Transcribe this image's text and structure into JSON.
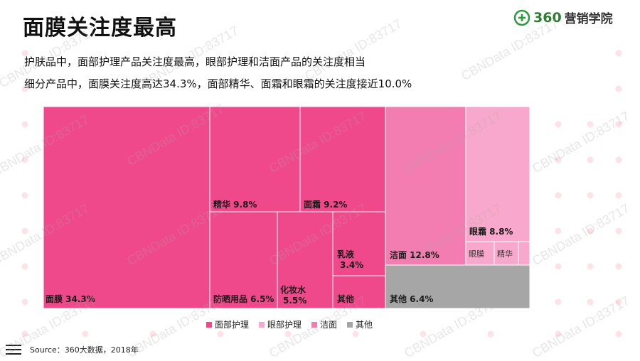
{
  "header": {
    "title": "面膜关注度最高",
    "subtitle_line1": "护肤品中，面部护理产品关注度最高，眼部护理和洁面产品的关注度相当",
    "subtitle_line2": "细分产品中，面膜关注度高达34.3%，面部精华、面霜和眼霜的关注度接近10.0%"
  },
  "logo": {
    "brand": "360",
    "suffix": "营销学院"
  },
  "watermark": "CBNData ID:83717",
  "source": "Source：360大数据，2018年",
  "colors": {
    "face": "#f0498b",
    "eye": "#f8a8cc",
    "cleanse": "#f37cb1",
    "other": "#a6a6a6",
    "dots": "#fde3e8"
  },
  "chart_data": {
    "type": "treemap",
    "legend": [
      {
        "name": "面部护理",
        "color": "#f0498b"
      },
      {
        "name": "眼部护理",
        "color": "#f8a8cc"
      },
      {
        "name": "洁面",
        "color": "#f37cb1"
      },
      {
        "name": "其他",
        "color": "#a6a6a6"
      }
    ],
    "items": [
      {
        "name": "面膜",
        "value": 34.3,
        "label": "面膜 34.3%",
        "group": "面部护理"
      },
      {
        "name": "精华",
        "value": 9.8,
        "label": "精华 9.8%",
        "group": "面部护理"
      },
      {
        "name": "面霜",
        "value": 9.2,
        "label": "面霜 9.2%",
        "group": "面部护理"
      },
      {
        "name": "防晒用品",
        "value": 6.5,
        "label": "防晒用品 6.5%",
        "group": "面部护理"
      },
      {
        "name": "化妆水",
        "value": 5.5,
        "label": "化妆水\n5.5%",
        "group": "面部护理"
      },
      {
        "name": "乳液",
        "value": 3.4,
        "label": "乳液\n3.4%",
        "group": "面部护理"
      },
      {
        "name": "其他",
        "value": null,
        "label": "其他",
        "group": "面部护理"
      },
      {
        "name": "洁面",
        "value": 12.8,
        "label": "洁面 12.8%",
        "group": "洁面"
      },
      {
        "name": "其他",
        "value": 6.4,
        "label": "其他 6.4%",
        "group": "其他"
      },
      {
        "name": "眼霜",
        "value": 8.8,
        "label": "眼霜 8.8%",
        "group": "眼部护理"
      },
      {
        "name": "眼膜",
        "value": null,
        "label": "眼膜",
        "group": "眼部护理"
      },
      {
        "name": "精华",
        "value": null,
        "label": "精华",
        "group": "眼部护理"
      },
      {
        "name": "",
        "value": null,
        "label": "",
        "group": "眼部护理"
      }
    ]
  }
}
